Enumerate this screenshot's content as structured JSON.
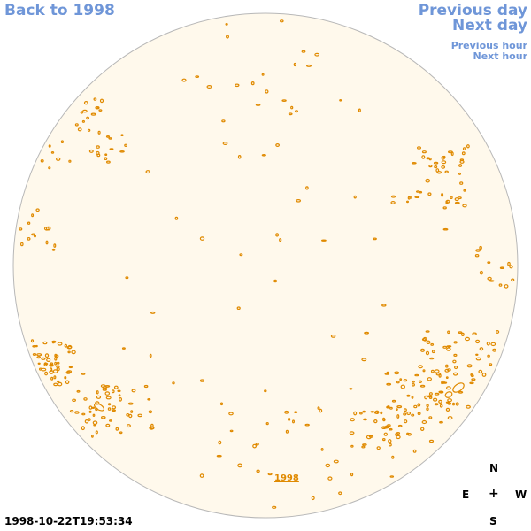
{
  "nav": {
    "back_label": "Back to 1998",
    "prev_day_label": "Previous day",
    "next_day_label": "Next day",
    "prev_hour_label": "Previous hour",
    "next_hour_label": "Next hour"
  },
  "year_link": "1998",
  "compass": {
    "north": "N",
    "east": "E",
    "center": "+",
    "west": "W",
    "south": "S"
  },
  "timestamp": "1998-10-22T19:53:34",
  "colors": {
    "link": "#6f96d8",
    "disk_fill": "#fff9ec",
    "disk_border": "#b8b8b8",
    "magnetic_feature": "#e08a00"
  }
}
